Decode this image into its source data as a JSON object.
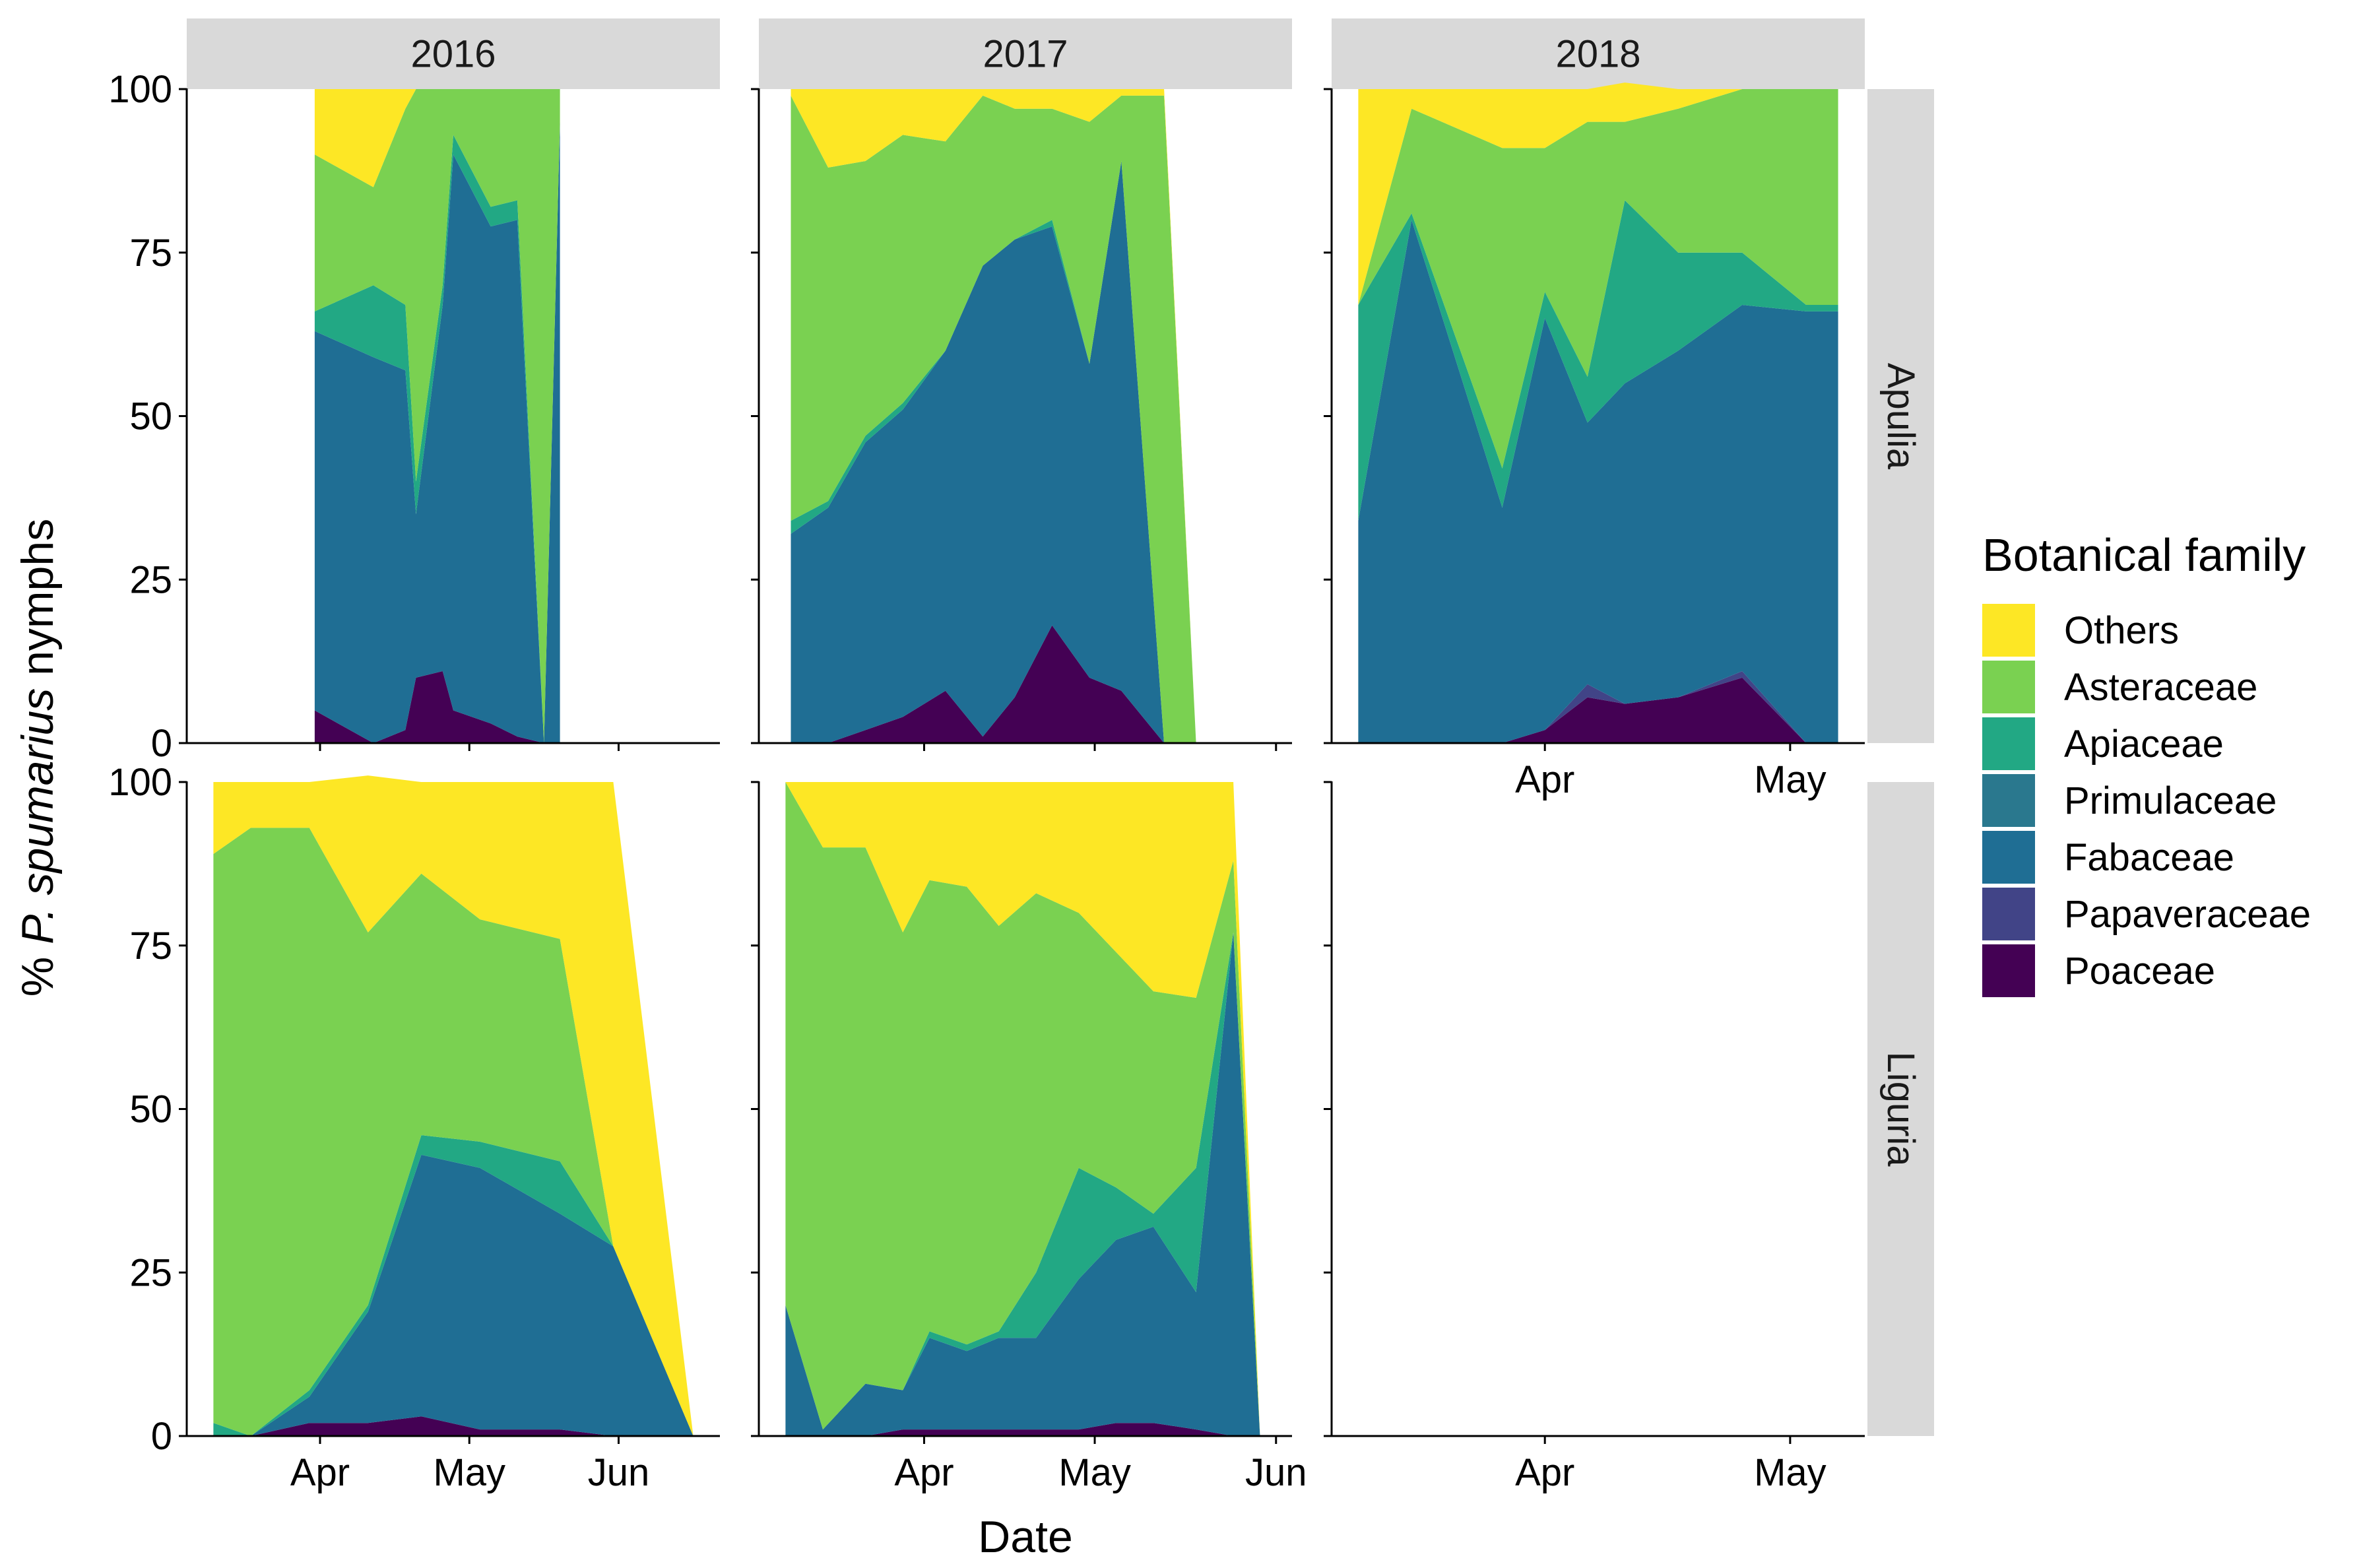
{
  "chart_data": {
    "type": "area",
    "stacked": true,
    "y_label_prefix": "% ",
    "y_label_italic": "P. spumarius",
    "y_label_suffix": " nymphs",
    "xlabel": "Date",
    "ylim": [
      0,
      100
    ],
    "yticks": [
      "0",
      "25",
      "50",
      "75",
      "100"
    ],
    "legend": {
      "title": "Botanical family",
      "position": "right",
      "entries": [
        "Others",
        "Asteraceae",
        "Apiaceae",
        "Primulaceae",
        "Fabaceae",
        "Papaveraceae",
        "Poaceae"
      ]
    },
    "colors": {
      "Others": "#FDE725",
      "Asteraceae": "#7AD151",
      "Apiaceae": "#22A884",
      "Primulaceae": "#2A788E",
      "Fabaceae": "#1F6E94",
      "Papaveraceae": "#414487",
      "Poaceae": "#440154",
      "strip_bg": "#D9D9D9"
    },
    "stack_order": [
      "Poaceae",
      "Papaveraceae",
      "Fabaceae",
      "Primulaceae",
      "Apiaceae",
      "Asteraceae",
      "Others"
    ],
    "columns": [
      "2016",
      "2017",
      "2018"
    ],
    "rows": [
      "Apulia",
      "Liguria"
    ],
    "panels": [
      {
        "row": "Apulia",
        "col": "2016",
        "xdomain": [
          0,
          1
        ],
        "xticks": [
          {
            "label": "Apr",
            "pos": 0.25
          },
          {
            "label": "May",
            "pos": 0.53
          },
          {
            "label": "Jun",
            "pos": 0.81
          }
        ],
        "x": [
          0.24,
          0.35,
          0.41,
          0.43,
          0.48,
          0.5,
          0.57,
          0.62,
          0.67,
          0.7
        ],
        "Poaceae": [
          5,
          0,
          2,
          10,
          11,
          5,
          3,
          1,
          0,
          0
        ],
        "Papaveraceae": [
          0,
          0,
          0,
          0,
          0,
          0,
          0,
          0,
          0,
          0
        ],
        "Fabaceae": [
          58,
          59,
          55,
          25,
          56,
          85,
          76,
          79,
          0,
          95
        ],
        "Primulaceae": [
          0,
          0,
          0,
          0,
          0,
          0,
          0,
          0,
          0,
          0
        ],
        "Apiaceae": [
          3,
          11,
          10,
          5,
          3,
          3,
          3,
          3,
          0,
          0
        ],
        "Asteraceae": [
          24,
          15,
          30,
          60,
          30,
          7,
          18,
          17,
          100,
          5
        ],
        "Others": [
          10,
          15,
          3,
          0,
          0,
          0,
          0,
          0,
          0,
          0
        ]
      },
      {
        "row": "Apulia",
        "col": "2017",
        "xdomain": [
          0,
          1
        ],
        "xticks": [
          {
            "label": "Apr",
            "pos": 0.31
          },
          {
            "label": "May",
            "pos": 0.63
          },
          {
            "label": "Jun",
            "pos": 0.97
          }
        ],
        "x": [
          0.06,
          0.13,
          0.2,
          0.27,
          0.35,
          0.42,
          0.48,
          0.55,
          0.62,
          0.68,
          0.76,
          0.82
        ],
        "Poaceae": [
          0,
          0,
          2,
          4,
          8,
          1,
          7,
          18,
          10,
          8,
          0,
          0
        ],
        "Papaveraceae": [
          0,
          0,
          0,
          0,
          0,
          0,
          0,
          0,
          0,
          0,
          0,
          0
        ],
        "Fabaceae": [
          32,
          36,
          44,
          47,
          52,
          72,
          70,
          61,
          48,
          81,
          0,
          0
        ],
        "Primulaceae": [
          0,
          0,
          0,
          0,
          0,
          0,
          0,
          0,
          0,
          0,
          0,
          0
        ],
        "Apiaceae": [
          2,
          1,
          1,
          1,
          0,
          0,
          0,
          1,
          0,
          0,
          0,
          0
        ],
        "Asteraceae": [
          65,
          51,
          42,
          41,
          32,
          26,
          20,
          17,
          37,
          10,
          99,
          0
        ],
        "Others": [
          1,
          12,
          11,
          7,
          8,
          1,
          3,
          3,
          5,
          1,
          1,
          0
        ]
      },
      {
        "row": "Apulia",
        "col": "2018",
        "xdomain": [
          0,
          1
        ],
        "xticks": [
          {
            "label": "Apr",
            "pos": 0.4
          },
          {
            "label": "May",
            "pos": 0.86
          }
        ],
        "x": [
          0.05,
          0.15,
          0.32,
          0.4,
          0.48,
          0.55,
          0.65,
          0.77,
          0.89,
          0.95
        ],
        "Poaceae": [
          0,
          0,
          0,
          2,
          7,
          6,
          7,
          10,
          0,
          0
        ],
        "Papaveraceae": [
          0,
          0,
          0,
          0,
          2,
          0,
          0,
          1,
          0,
          0
        ],
        "Fabaceae": [
          34,
          80,
          36,
          63,
          40,
          49,
          53,
          56,
          66,
          66
        ],
        "Primulaceae": [
          0,
          0,
          0,
          0,
          0,
          0,
          0,
          0,
          0,
          0
        ],
        "Apiaceae": [
          33,
          1,
          6,
          4,
          7,
          28,
          15,
          8,
          1,
          1
        ],
        "Asteraceae": [
          0,
          16,
          49,
          22,
          39,
          12,
          22,
          25,
          33,
          33
        ],
        "Others": [
          33,
          3,
          9,
          9,
          5,
          6,
          3,
          0,
          0,
          0
        ]
      },
      {
        "row": "Liguria",
        "col": "2016",
        "xdomain": [
          0,
          1
        ],
        "xticks": [
          {
            "label": "Apr",
            "pos": 0.25
          },
          {
            "label": "May",
            "pos": 0.53
          },
          {
            "label": "Jun",
            "pos": 0.81
          }
        ],
        "x": [
          0.05,
          0.12,
          0.23,
          0.34,
          0.44,
          0.55,
          0.7,
          0.8,
          0.95
        ],
        "Poaceae": [
          0,
          0,
          2,
          2,
          3,
          1,
          1,
          0,
          0
        ],
        "Papaveraceae": [
          0,
          0,
          0,
          0,
          0,
          0,
          0,
          0,
          0
        ],
        "Fabaceae": [
          0,
          0,
          4,
          17,
          40,
          40,
          33,
          29,
          0
        ],
        "Primulaceae": [
          0,
          0,
          0,
          0,
          0,
          0,
          0,
          0,
          0
        ],
        "Apiaceae": [
          2,
          0,
          1,
          1,
          3,
          4,
          8,
          0,
          0
        ],
        "Asteraceae": [
          87,
          93,
          86,
          57,
          40,
          34,
          34,
          0,
          0
        ],
        "Others": [
          11,
          7,
          7,
          24,
          14,
          21,
          24,
          71,
          0
        ]
      },
      {
        "row": "Liguria",
        "col": "2017",
        "xdomain": [
          0,
          1
        ],
        "xticks": [
          {
            "label": "Apr",
            "pos": 0.31
          },
          {
            "label": "May",
            "pos": 0.63
          },
          {
            "label": "Jun",
            "pos": 0.97
          }
        ],
        "x": [
          0.05,
          0.12,
          0.2,
          0.27,
          0.32,
          0.39,
          0.45,
          0.52,
          0.6,
          0.67,
          0.74,
          0.82,
          0.89,
          0.94
        ],
        "Poaceae": [
          0,
          0,
          0,
          1,
          1,
          1,
          1,
          1,
          1,
          2,
          2,
          1,
          0,
          0
        ],
        "Papaveraceae": [
          0,
          0,
          0,
          0,
          0,
          0,
          0,
          0,
          0,
          0,
          0,
          0,
          0,
          0
        ],
        "Fabaceae": [
          20,
          1,
          8,
          6,
          14,
          12,
          14,
          14,
          23,
          28,
          30,
          21,
          77,
          0
        ],
        "Primulaceae": [
          0,
          0,
          0,
          0,
          0,
          0,
          0,
          0,
          0,
          0,
          0,
          0,
          0,
          0
        ],
        "Apiaceae": [
          0,
          0,
          0,
          0,
          1,
          1,
          1,
          10,
          17,
          8,
          2,
          19,
          0,
          0
        ],
        "Asteraceae": [
          80,
          89,
          82,
          70,
          69,
          70,
          62,
          58,
          39,
          36,
          34,
          26,
          11,
          0
        ],
        "Others": [
          0,
          10,
          10,
          23,
          15,
          16,
          22,
          17,
          20,
          26,
          32,
          33,
          12,
          0
        ]
      },
      {
        "row": "Liguria",
        "col": "2018",
        "xdomain": [
          0,
          1
        ],
        "xticks": [
          {
            "label": "Apr",
            "pos": 0.4
          },
          {
            "label": "May",
            "pos": 0.86
          }
        ],
        "x": []
      }
    ]
  }
}
